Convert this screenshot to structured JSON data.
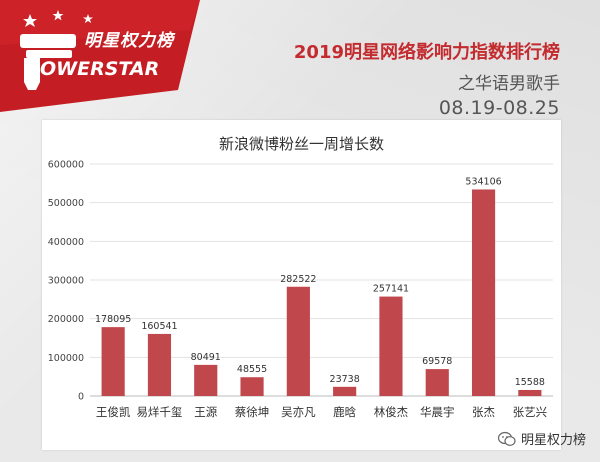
{
  "brand": {
    "logo_cn": "明星权力榜",
    "logo_en": "OWERSTAR"
  },
  "header": {
    "title": "2019明星网络影响力指数排行榜",
    "subtitle": "之华语男歌手",
    "date_range": "08.19-08.25"
  },
  "watermark": {
    "label": "明星权力榜"
  },
  "colors": {
    "accent": "#c32b2f",
    "bar": "#c0474c",
    "header_red": "#c41e24"
  },
  "chart_data": {
    "type": "bar",
    "title": "新浪微博粉丝一周增长数",
    "xlabel": "",
    "ylabel": "",
    "ylim": [
      0,
      600000
    ],
    "yticks": [
      0,
      100000,
      200000,
      300000,
      400000,
      500000,
      600000
    ],
    "grid": true,
    "categories": [
      "王俊凯",
      "易烊千玺",
      "王源",
      "蔡徐坤",
      "吴亦凡",
      "鹿晗",
      "林俊杰",
      "华晨宇",
      "张杰",
      "张艺兴"
    ],
    "values": [
      178095,
      160541,
      80491,
      48555,
      282522,
      23738,
      257141,
      69578,
      534106,
      15588
    ]
  }
}
